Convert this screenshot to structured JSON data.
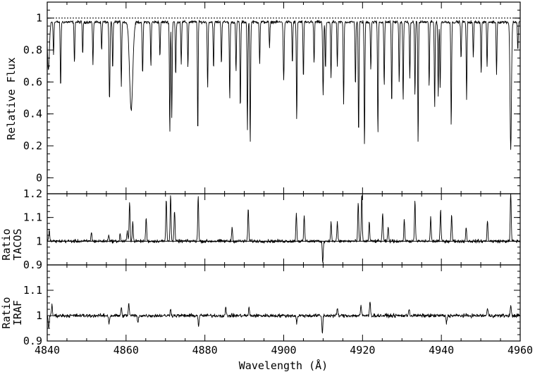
{
  "chart_data": [
    {
      "type": "line",
      "panel": "flux",
      "ylabel": "Relative Flux",
      "ylim": [
        -0.1,
        1.1
      ],
      "yticks": [
        0,
        0.2,
        0.4,
        0.6,
        0.8,
        1
      ],
      "ytick_labels": [
        "0",
        "0.2",
        "0.4",
        "0.6",
        "0.8",
        "1"
      ],
      "reference_line": {
        "y": 1,
        "style": "dotted"
      },
      "continuum": 0.975,
      "min_flux": 0.15,
      "absorption_lines": [
        [
          4840.3,
          0.3,
          0.25
        ],
        [
          4841.6,
          0.2,
          0.1
        ],
        [
          4843.4,
          0.42,
          0.1
        ],
        [
          4846.9,
          0.26,
          0.1
        ],
        [
          4849.0,
          0.2,
          0.1
        ],
        [
          4851.6,
          0.27,
          0.1
        ],
        [
          4853.8,
          0.18,
          0.1
        ],
        [
          4855.8,
          0.5,
          0.12
        ],
        [
          4856.6,
          0.3,
          0.1
        ],
        [
          4858.8,
          0.4,
          0.1
        ],
        [
          4861.3,
          0.55,
          0.4
        ],
        [
          4864.2,
          0.32,
          0.12
        ],
        [
          4866.3,
          0.28,
          0.1
        ],
        [
          4868.6,
          0.22,
          0.1
        ],
        [
          4871.1,
          0.7,
          0.1
        ],
        [
          4871.6,
          0.6,
          0.1
        ],
        [
          4872.6,
          0.34,
          0.1
        ],
        [
          4874.0,
          0.26,
          0.1
        ],
        [
          4875.7,
          0.28,
          0.1
        ],
        [
          4878.2,
          0.72,
          0.09
        ],
        [
          4880.7,
          0.42,
          0.1
        ],
        [
          4882.2,
          0.3,
          0.1
        ],
        [
          4884.2,
          0.26,
          0.1
        ],
        [
          4886.3,
          0.48,
          0.1
        ],
        [
          4887.9,
          0.32,
          0.1
        ],
        [
          4889.0,
          0.55,
          0.1
        ],
        [
          4890.8,
          0.68,
          0.1
        ],
        [
          4891.5,
          0.76,
          0.1
        ],
        [
          4893.9,
          0.26,
          0.1
        ],
        [
          4896.4,
          0.16,
          0.1
        ],
        [
          4900.0,
          0.37,
          0.12
        ],
        [
          4902.2,
          0.26,
          0.1
        ],
        [
          4903.3,
          0.62,
          0.1
        ],
        [
          4905.0,
          0.36,
          0.1
        ],
        [
          4907.7,
          0.26,
          0.1
        ],
        [
          4910.0,
          0.46,
          0.12
        ],
        [
          4910.6,
          0.3,
          0.1
        ],
        [
          4912.0,
          0.36,
          0.1
        ],
        [
          4913.6,
          0.28,
          0.1
        ],
        [
          4915.2,
          0.52,
          0.1
        ],
        [
          4918.2,
          0.4,
          0.1
        ],
        [
          4919.0,
          0.72,
          0.1
        ],
        [
          4920.5,
          0.78,
          0.1
        ],
        [
          4922.1,
          0.3,
          0.1
        ],
        [
          4923.9,
          0.7,
          0.1
        ],
        [
          4925.5,
          0.4,
          0.1
        ],
        [
          4927.4,
          0.52,
          0.1
        ],
        [
          4929.3,
          0.38,
          0.1
        ],
        [
          4930.3,
          0.5,
          0.1
        ],
        [
          4932.0,
          0.36,
          0.1
        ],
        [
          4933.3,
          0.45,
          0.1
        ],
        [
          4934.1,
          0.77,
          0.09
        ],
        [
          4936.9,
          0.4,
          0.1
        ],
        [
          4938.3,
          0.54,
          0.1
        ],
        [
          4939.2,
          0.46,
          0.1
        ],
        [
          4939.7,
          0.42,
          0.1
        ],
        [
          4942.5,
          0.65,
          0.1
        ],
        [
          4945.0,
          0.24,
          0.1
        ],
        [
          4946.4,
          0.48,
          0.1
        ],
        [
          4948.1,
          0.22,
          0.1
        ],
        [
          4950.1,
          0.32,
          0.1
        ],
        [
          4951.6,
          0.28,
          0.1
        ],
        [
          4954.0,
          0.32,
          0.1
        ],
        [
          4957.6,
          0.8,
          0.18
        ],
        [
          4959.4,
          0.18,
          0.1
        ]
      ]
    },
    {
      "type": "line",
      "panel": "ratio_tacos",
      "ylabel": "Ratio TACOS",
      "ylabel_lines": [
        "Ratio",
        "TACOS"
      ],
      "ylim": [
        0.9,
        1.2
      ],
      "yticks": [
        0.9,
        1,
        1.1,
        1.2
      ],
      "ytick_labels": [
        "0.9",
        "1",
        "1.1",
        "1.2"
      ],
      "reference_line": {
        "y": 1,
        "style": "solid"
      },
      "baseline": 1.0,
      "noise": 0.006,
      "spikes": [
        [
          4840.5,
          0.05
        ],
        [
          4851.2,
          0.04
        ],
        [
          4855.6,
          0.03
        ],
        [
          4858.5,
          0.03
        ],
        [
          4860.3,
          0.04
        ],
        [
          4860.9,
          0.17
        ],
        [
          4861.7,
          0.08
        ],
        [
          4865.1,
          0.1
        ],
        [
          4870.2,
          0.18
        ],
        [
          4871.3,
          0.2
        ],
        [
          4872.3,
          0.13
        ],
        [
          4878.3,
          0.19
        ],
        [
          4886.9,
          0.06
        ],
        [
          4891.0,
          0.14
        ],
        [
          4903.2,
          0.12
        ],
        [
          4905.2,
          0.11
        ],
        [
          4909.9,
          -0.09
        ],
        [
          4912.0,
          0.08
        ],
        [
          4913.6,
          0.08
        ],
        [
          4918.9,
          0.16
        ],
        [
          4919.8,
          0.2
        ],
        [
          4921.7,
          0.08
        ],
        [
          4925.1,
          0.12
        ],
        [
          4926.5,
          0.06
        ],
        [
          4930.6,
          0.09
        ],
        [
          4933.3,
          0.17
        ],
        [
          4937.3,
          0.1
        ],
        [
          4939.8,
          0.13
        ],
        [
          4942.6,
          0.11
        ],
        [
          4946.3,
          0.06
        ],
        [
          4951.7,
          0.09
        ],
        [
          4957.6,
          0.21
        ]
      ]
    },
    {
      "type": "line",
      "panel": "ratio_iraf",
      "ylabel": "Ratio IRAF",
      "ylabel_lines": [
        "Ratio",
        "IRAF"
      ],
      "ylim": [
        0.9,
        1.2
      ],
      "yticks": [
        0.9,
        1,
        1.1
      ],
      "ytick_labels": [
        "0.9",
        "1",
        "1.1"
      ],
      "baseline": 1.0,
      "noise": 0.006,
      "spikes": [
        [
          4840.4,
          -0.05
        ],
        [
          4841.2,
          0.04
        ],
        [
          4855.7,
          -0.03
        ],
        [
          4858.8,
          0.03
        ],
        [
          4860.7,
          0.05
        ],
        [
          4863.0,
          -0.03
        ],
        [
          4871.3,
          0.03
        ],
        [
          4878.4,
          -0.04
        ],
        [
          4885.3,
          0.03
        ],
        [
          4891.2,
          0.03
        ],
        [
          4903.3,
          -0.03
        ],
        [
          4909.8,
          -0.07
        ],
        [
          4913.6,
          0.03
        ],
        [
          4919.6,
          0.04
        ],
        [
          4921.9,
          0.06
        ],
        [
          4931.8,
          0.03
        ],
        [
          4941.3,
          -0.03
        ],
        [
          4951.7,
          0.03
        ],
        [
          4957.6,
          0.04
        ]
      ]
    }
  ],
  "x_axis": {
    "label": "Wavelength (Å)",
    "range": [
      4840,
      4960
    ],
    "ticks": [
      4840,
      4860,
      4880,
      4900,
      4920,
      4940,
      4960
    ],
    "tick_labels": [
      "4840",
      "4860",
      "4880",
      "4900",
      "4920",
      "4940",
      "4960"
    ]
  }
}
